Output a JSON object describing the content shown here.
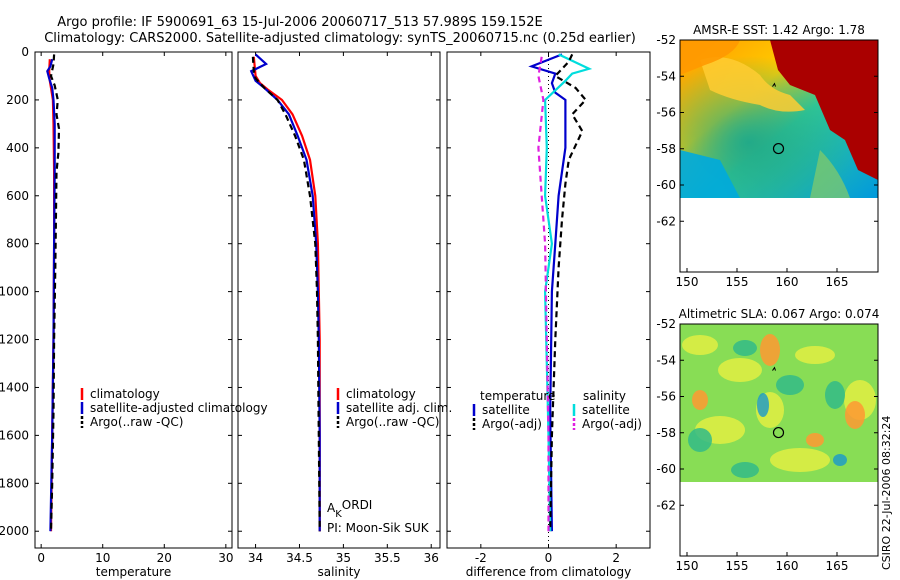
{
  "title_line1": "Argo profile: IF 5900691_63 15-Jul-2006 20060717_513 57.989S 159.152E",
  "title_line2": "Climatology: CARS2000. Satellite-adjusted climatology: synTS_20060715.nc (0.25d earlier)",
  "footer_text": "CSIRO 22-Jul-2006 08:32:24",
  "colors": {
    "clim": "#ff0000",
    "sat": "#0000cc",
    "argo": "#000000",
    "sat_sal": "#00dddd",
    "argo_sal": "#e020e0"
  },
  "chart_data": [
    {
      "type": "line",
      "name": "temperature",
      "xlabel": "temperature",
      "xlim": [
        -1,
        31
      ],
      "ylim": [
        0,
        2070
      ],
      "xticks": [
        0,
        10,
        20,
        30
      ],
      "yticks": [
        0,
        200,
        400,
        600,
        800,
        1000,
        1200,
        1400,
        1600,
        1800,
        2000
      ],
      "legend": [
        "climatology",
        "satellite-adjusted climatology",
        "Argo(..raw -QC)"
      ],
      "series": [
        {
          "name": "climatology",
          "color": "clim",
          "dash": false,
          "points": [
            [
              1.4,
              30
            ],
            [
              1.3,
              80
            ],
            [
              1.4,
              120
            ],
            [
              1.6,
              150
            ],
            [
              1.9,
              200
            ],
            [
              2.0,
              300
            ],
            [
              2.1,
              500
            ],
            [
              2.1,
              800
            ],
            [
              2.0,
              1200
            ],
            [
              1.8,
              1600
            ],
            [
              1.6,
              2000
            ]
          ]
        },
        {
          "name": "satellite-adjusted climatology",
          "color": "sat",
          "dash": false,
          "points": [
            [
              1.8,
              30
            ],
            [
              1.5,
              60
            ],
            [
              1.0,
              80
            ],
            [
              1.3,
              110
            ],
            [
              1.8,
              150
            ],
            [
              2.0,
              200
            ],
            [
              2.2,
              300
            ],
            [
              2.2,
              500
            ],
            [
              2.1,
              800
            ],
            [
              2.0,
              1200
            ],
            [
              1.8,
              1600
            ],
            [
              1.5,
              2000
            ]
          ]
        },
        {
          "name": "Argo(..raw -QC)",
          "color": "argo",
          "dash": true,
          "points": [
            [
              2.1,
              10
            ],
            [
              2.0,
              50
            ],
            [
              1.6,
              100
            ],
            [
              2.2,
              140
            ],
            [
              2.7,
              200
            ],
            [
              2.5,
              260
            ],
            [
              2.9,
              320
            ],
            [
              2.8,
              420
            ],
            [
              2.5,
              500
            ],
            [
              2.4,
              700
            ],
            [
              2.3,
              900
            ],
            [
              2.1,
              1200
            ],
            [
              2.0,
              1500
            ],
            [
              1.8,
              1800
            ],
            [
              1.6,
              2000
            ]
          ]
        }
      ]
    },
    {
      "type": "line",
      "name": "salinity",
      "xlabel": "salinity",
      "xlim": [
        33.8,
        36.1
      ],
      "ylim": [
        0,
        2070
      ],
      "xticks": [
        34,
        34.5,
        35,
        35.5,
        36
      ],
      "legend": [
        "climatology",
        "satellite adj. clim.",
        "Argo(..raw -QC)"
      ],
      "annotation_a": "A",
      "annotation_k": "K",
      "annotation_rest": "ORDI",
      "annotation_pi": "PI: Moon-Sik SUK",
      "series": [
        {
          "name": "climatology",
          "color": "clim",
          "dash": false,
          "points": [
            [
              33.98,
              20
            ],
            [
              33.99,
              60
            ],
            [
              34.0,
              100
            ],
            [
              34.05,
              130
            ],
            [
              34.15,
              160
            ],
            [
              34.3,
              200
            ],
            [
              34.42,
              260
            ],
            [
              34.53,
              350
            ],
            [
              34.62,
              450
            ],
            [
              34.68,
              600
            ],
            [
              34.71,
              800
            ],
            [
              34.72,
              1000
            ],
            [
              34.73,
              1200
            ],
            [
              34.73,
              1600
            ],
            [
              34.73,
              2000
            ]
          ]
        },
        {
          "name": "satellite adj. clim.",
          "color": "sat",
          "dash": false,
          "points": [
            [
              34.0,
              10
            ],
            [
              34.12,
              50
            ],
            [
              33.95,
              80
            ],
            [
              34.0,
              120
            ],
            [
              34.1,
              150
            ],
            [
              34.25,
              200
            ],
            [
              34.38,
              260
            ],
            [
              34.48,
              350
            ],
            [
              34.58,
              450
            ],
            [
              34.65,
              600
            ],
            [
              34.69,
              800
            ],
            [
              34.71,
              1000
            ],
            [
              34.72,
              1200
            ],
            [
              34.73,
              1600
            ],
            [
              34.73,
              2000
            ]
          ]
        },
        {
          "name": "Argo(..raw -QC)",
          "color": "argo",
          "dash": true,
          "points": [
            [
              33.97,
              20
            ],
            [
              33.98,
              80
            ],
            [
              34.0,
              110
            ],
            [
              34.1,
              150
            ],
            [
              34.25,
              200
            ],
            [
              34.34,
              260
            ],
            [
              34.45,
              350
            ],
            [
              34.55,
              450
            ],
            [
              34.62,
              600
            ],
            [
              34.68,
              800
            ],
            [
              34.7,
              1000
            ],
            [
              34.71,
              1200
            ],
            [
              34.72,
              1600
            ],
            [
              34.73,
              2000
            ]
          ]
        }
      ]
    },
    {
      "type": "line",
      "name": "difference",
      "xlabel": "difference from climatology",
      "xlim": [
        -3,
        3
      ],
      "ylim": [
        0,
        2070
      ],
      "xticks": [
        -2,
        0,
        2
      ],
      "legend_temp_title": "temperature",
      "legend_sal_title": "salinity",
      "legend_temp": [
        "satellite",
        "Argo(-adj)"
      ],
      "legend_sal": [
        "satellite",
        "Argo(-adj)"
      ],
      "series": [
        {
          "name": "temperature satellite",
          "color": "sat",
          "dash": false,
          "points": [
            [
              0.4,
              10
            ],
            [
              -0.5,
              60
            ],
            [
              0.2,
              90
            ],
            [
              0.1,
              130
            ],
            [
              0.2,
              170
            ],
            [
              0.5,
              200
            ],
            [
              0.5,
              400
            ],
            [
              0.3,
              600
            ],
            [
              0.2,
              800
            ],
            [
              0.1,
              1000
            ],
            [
              0.05,
              1500
            ],
            [
              0.1,
              2000
            ]
          ]
        },
        {
          "name": "salinity satellite",
          "color": "sat_sal",
          "dash": false,
          "points": [
            [
              0.3,
              10
            ],
            [
              1.2,
              70
            ],
            [
              0.7,
              90
            ],
            [
              0.5,
              120
            ],
            [
              -0.1,
              200
            ],
            [
              -0.05,
              400
            ],
            [
              -0.1,
              600
            ],
            [
              0.1,
              800
            ],
            [
              -0.1,
              1000
            ],
            [
              -0.05,
              1300
            ],
            [
              0.0,
              1600
            ],
            [
              0.05,
              2000
            ]
          ]
        },
        {
          "name": "temperature Argo(-adj)",
          "color": "argo",
          "dash": true,
          "points": [
            [
              0.7,
              10
            ],
            [
              0.6,
              40
            ],
            [
              0.2,
              100
            ],
            [
              0.8,
              150
            ],
            [
              1.1,
              200
            ],
            [
              0.7,
              260
            ],
            [
              1.0,
              330
            ],
            [
              0.6,
              450
            ],
            [
              0.5,
              550
            ],
            [
              0.4,
              700
            ],
            [
              0.3,
              900
            ],
            [
              0.2,
              1200
            ],
            [
              0.1,
              1600
            ],
            [
              0.05,
              2000
            ]
          ]
        },
        {
          "name": "salinity Argo(-adj)",
          "color": "argo_sal",
          "dash": true,
          "points": [
            [
              -0.2,
              20
            ],
            [
              -0.3,
              100
            ],
            [
              -0.15,
              200
            ],
            [
              -0.3,
              400
            ],
            [
              -0.2,
              600
            ],
            [
              -0.1,
              800
            ],
            [
              -0.05,
              1200
            ],
            [
              0.0,
              1600
            ],
            [
              0.0,
              2000
            ]
          ]
        }
      ]
    },
    {
      "type": "heatmap",
      "name": "sst_map",
      "title": "AMSR-E SST: 1.42  Argo: 1.78",
      "xlim": [
        149.3,
        169.1
      ],
      "ylim": [
        -64.8,
        -52
      ],
      "xticks": [
        150,
        155,
        160,
        165
      ],
      "yticks": [
        -52,
        -54,
        -56,
        -58,
        -60,
        -62
      ],
      "data_ylim": [
        -60,
        -52
      ],
      "marker": [
        159.15,
        -57.99
      ]
    },
    {
      "type": "heatmap",
      "name": "sla_map",
      "title": "Altimetric SLA: 0.067  Argo: 0.074",
      "xlim": [
        149.3,
        169.1
      ],
      "ylim": [
        -64.8,
        -52
      ],
      "xticks": [
        150,
        155,
        160,
        165
      ],
      "yticks": [
        -52,
        -54,
        -56,
        -58,
        -60,
        -62
      ],
      "data_ylim": [
        -60,
        -52
      ],
      "marker": [
        159.15,
        -57.99
      ]
    }
  ]
}
